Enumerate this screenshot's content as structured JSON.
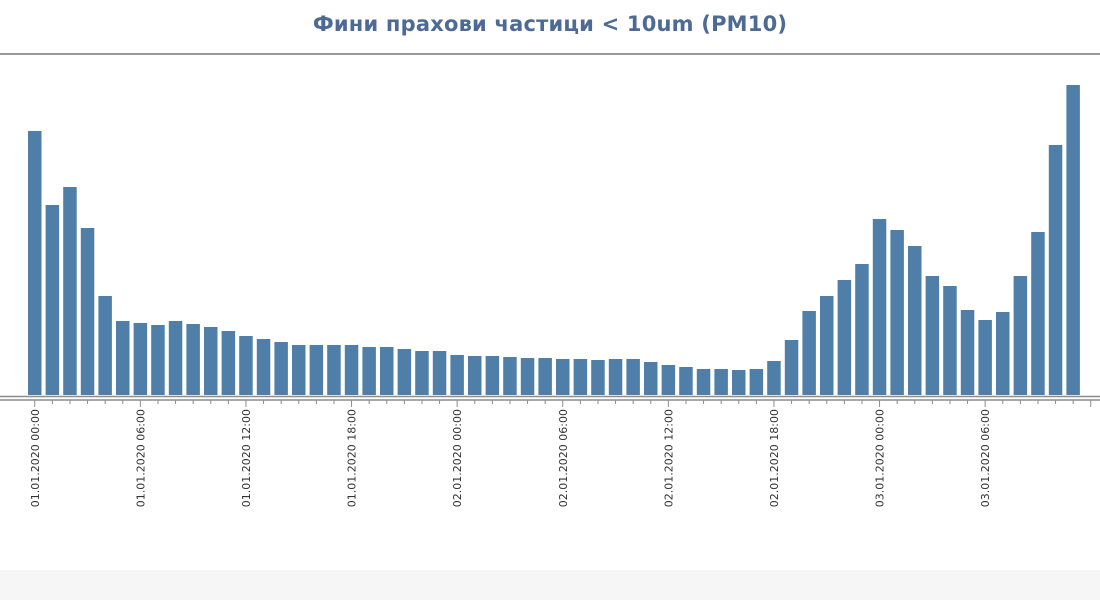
{
  "chart_data": {
    "type": "bar",
    "title": "Фини прахови частици < 10um (PM10)",
    "xlabel": "",
    "ylabel": "",
    "grid": false,
    "legend": "none",
    "bar_color": "#4f7fa8",
    "axis_color": "#8c8c8c",
    "title_color": "#4d6a95",
    "ylim": [
      0,
      310
    ],
    "tick_labels": [
      "01.01.2020 00:00",
      "01.01.2020 06:00",
      "01.01.2020 12:00",
      "01.01.2020 18:00",
      "02.01.2020 00:00",
      "02.01.2020 06:00",
      "02.01.2020 12:00",
      "02.01.2020 18:00",
      "03.01.2020 00:00",
      "03.01.2020 06:00"
    ],
    "tick_every": 6,
    "categories": [
      "01.01.2020 00:00",
      "01.01.2020 01:00",
      "01.01.2020 02:00",
      "01.01.2020 03:00",
      "01.01.2020 04:00",
      "01.01.2020 05:00",
      "01.01.2020 06:00",
      "01.01.2020 07:00",
      "01.01.2020 08:00",
      "01.01.2020 09:00",
      "01.01.2020 10:00",
      "01.01.2020 11:00",
      "01.01.2020 12:00",
      "01.01.2020 13:00",
      "01.01.2020 14:00",
      "01.01.2020 15:00",
      "01.01.2020 16:00",
      "01.01.2020 17:00",
      "01.01.2020 18:00",
      "01.01.2020 19:00",
      "01.01.2020 20:00",
      "01.01.2020 21:00",
      "01.01.2020 22:00",
      "01.01.2020 23:00",
      "02.01.2020 00:00",
      "02.01.2020 01:00",
      "02.01.2020 02:00",
      "02.01.2020 03:00",
      "02.01.2020 04:00",
      "02.01.2020 05:00",
      "02.01.2020 06:00",
      "02.01.2020 07:00",
      "02.01.2020 08:00",
      "02.01.2020 09:00",
      "02.01.2020 10:00",
      "02.01.2020 11:00",
      "02.01.2020 12:00",
      "02.01.2020 13:00",
      "02.01.2020 14:00",
      "02.01.2020 15:00",
      "02.01.2020 16:00",
      "02.01.2020 17:00",
      "02.01.2020 18:00",
      "02.01.2020 19:00",
      "02.01.2020 20:00",
      "02.01.2020 21:00",
      "02.01.2020 22:00",
      "02.01.2020 23:00",
      "03.01.2020 00:00",
      "03.01.2020 01:00",
      "03.01.2020 02:00",
      "03.01.2020 03:00",
      "03.01.2020 04:00",
      "03.01.2020 05:00",
      "03.01.2020 06:00",
      "03.01.2020 07:00",
      "03.01.2020 08:00",
      "03.01.2020 09:00",
      "03.01.2020 10:00",
      "03.01.2020 11:00"
    ],
    "values": [
      264,
      190,
      208,
      167,
      99,
      74,
      72,
      70,
      74,
      71,
      68,
      64,
      59,
      56,
      53,
      50,
      50,
      50,
      50,
      48,
      48,
      46,
      44,
      44,
      40,
      39,
      39,
      38,
      37,
      37,
      36,
      36,
      35,
      36,
      36,
      33,
      30,
      28,
      26,
      26,
      25,
      26,
      34,
      55,
      84,
      99,
      115,
      131,
      176,
      165,
      149,
      119,
      109,
      85,
      75,
      83,
      119,
      163,
      250,
      310
    ]
  }
}
